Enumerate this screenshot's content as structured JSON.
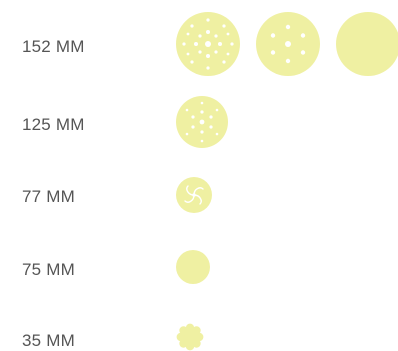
{
  "sizes": [
    {
      "label": "152 MM",
      "discs": [
        {
          "name": "disc-152mm-multihole-icon"
        },
        {
          "name": "disc-152mm-6-hole-icon"
        },
        {
          "name": "disc-152mm-no-hole-icon"
        }
      ]
    },
    {
      "label": "125 MM",
      "discs": [
        {
          "name": "disc-125mm-multihole-icon"
        }
      ]
    },
    {
      "label": "77 MM",
      "discs": [
        {
          "name": "disc-77mm-swirl-icon"
        }
      ]
    },
    {
      "label": "75 MM",
      "discs": [
        {
          "name": "disc-75mm-plain-icon"
        }
      ]
    },
    {
      "label": "35 MM",
      "discs": [
        {
          "name": "disc-35mm-flower-icon"
        }
      ]
    }
  ],
  "colors": {
    "disc_fill": "#eff0a2",
    "hole": "#ffffff",
    "label_text": "#555555"
  }
}
